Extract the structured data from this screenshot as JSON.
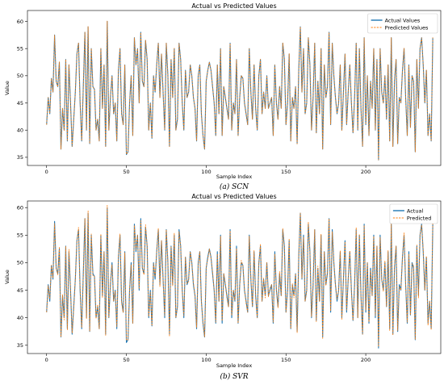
{
  "chart_data": [
    {
      "type": "line",
      "title": "Actual vs Predicted Values",
      "xlabel": "Sample Index",
      "ylabel": "Value",
      "caption": "(a) SCN",
      "xlim": [
        -12,
        247
      ],
      "ylim": [
        33.5,
        62
      ],
      "xticks": [
        0,
        50,
        100,
        150,
        200
      ],
      "yticks": [
        35,
        40,
        45,
        50,
        55,
        60
      ],
      "legend_position": "top-right",
      "grid": false,
      "series": [
        {
          "name": "Actual Values",
          "color": "#1f77b4",
          "style": "solid",
          "values": [
            41,
            46,
            43,
            49.5,
            47,
            57.5,
            49,
            48,
            52.5,
            36.5,
            44,
            40,
            53,
            38,
            52,
            45,
            37,
            42,
            47,
            54,
            56,
            45,
            38,
            48,
            58,
            40,
            59,
            37.5,
            55,
            48,
            47.5,
            40,
            42,
            38,
            55,
            44,
            52,
            37,
            60,
            40,
            46,
            50,
            43,
            45,
            38,
            51,
            55,
            43,
            41,
            52,
            35.5,
            36,
            45,
            50,
            39,
            57,
            52,
            55,
            45,
            58,
            49,
            48,
            56.5,
            53,
            40,
            45,
            38.5,
            50,
            47,
            52,
            56,
            46,
            54,
            47,
            40,
            56,
            50,
            37,
            53,
            46,
            55,
            40,
            42,
            56,
            53,
            45,
            40,
            51,
            46,
            47,
            52,
            50,
            46,
            44,
            38,
            50,
            52,
            43,
            39,
            36.5,
            49,
            51,
            52.5,
            51,
            48,
            45,
            39,
            52,
            43,
            55,
            39,
            48,
            46,
            44,
            42,
            56,
            40,
            45,
            43,
            53,
            39,
            46,
            50,
            49.5,
            45,
            43,
            41,
            55,
            47,
            42,
            52,
            44,
            40,
            50,
            53,
            43,
            47,
            44,
            50,
            44,
            45,
            46,
            39,
            52,
            45,
            42,
            48,
            44,
            56,
            53,
            41,
            45,
            54,
            38,
            46,
            44,
            48,
            37.5,
            51,
            59,
            47,
            55,
            43,
            45,
            57,
            52,
            40,
            46,
            56,
            39.5,
            49,
            43,
            55,
            36.5,
            52,
            46,
            48,
            58,
            41,
            56,
            50,
            46,
            43,
            45,
            52,
            40,
            47,
            54,
            41,
            47,
            52,
            45,
            39.5,
            46,
            56,
            40,
            55,
            44,
            37,
            57,
            41,
            50,
            39,
            49,
            44,
            55,
            40,
            53,
            34.5,
            55,
            47,
            45,
            50,
            42,
            52,
            38,
            57,
            37,
            49,
            53,
            37.5,
            46,
            45,
            51,
            55,
            46,
            39,
            52,
            40.5,
            50,
            49,
            36,
            53,
            44,
            55,
            57,
            52,
            45,
            51,
            39,
            43,
            38,
            57
          ]
        },
        {
          "name": "Predicted Values",
          "color": "#ff7f0e",
          "style": "dashed",
          "offset": 0.05
        }
      ]
    },
    {
      "type": "line",
      "title": "Actual vs Predicted Values",
      "xlabel": "Sample Index",
      "ylabel": "Value",
      "caption": "(b) SVR",
      "xlim": [
        -12,
        247
      ],
      "ylim": [
        33.5,
        61.2
      ],
      "xticks": [
        0,
        50,
        100,
        150,
        200
      ],
      "yticks": [
        35,
        40,
        45,
        50,
        55,
        60
      ],
      "legend_position": "top-right",
      "grid": false,
      "series": [
        {
          "name": "Actual",
          "color": "#1f77b4",
          "style": "solid",
          "same_as_chart": 0
        },
        {
          "name": "Predicted",
          "color": "#ff7f0e",
          "style": "dashed",
          "offset": 0.4
        }
      ]
    }
  ]
}
